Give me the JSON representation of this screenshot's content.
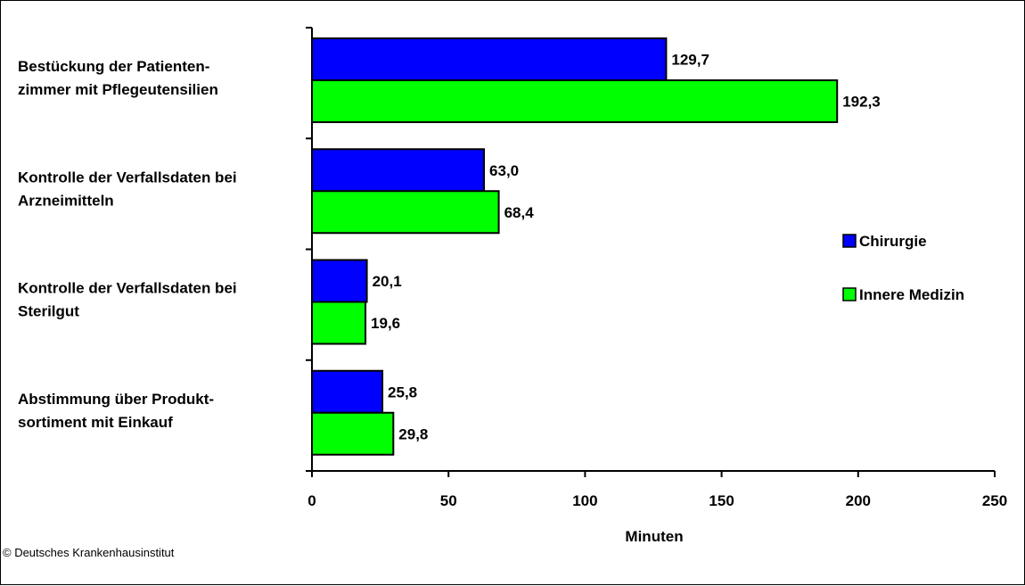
{
  "chart_data": {
    "type": "bar",
    "orientation": "horizontal",
    "categories": [
      [
        "Bestückung der Patienten-",
        "zimmer mit Pflegeutensilien"
      ],
      [
        "Kontrolle der Verfallsdaten bei",
        "Arzneimitteln"
      ],
      [
        "Kontrolle der Verfallsdaten bei",
        "Sterilgut"
      ],
      [
        "Abstimmung über Produkt-",
        "sortiment mit Einkauf"
      ]
    ],
    "series": [
      {
        "name": "Chirurgie",
        "color": "#0000ff",
        "values": [
          129.7,
          63.0,
          20.1,
          25.8
        ],
        "labels": [
          "129,7",
          "63,0",
          "20,1",
          "25,8"
        ]
      },
      {
        "name": "Innere Medizin",
        "color": "#00ff00",
        "values": [
          192.3,
          68.4,
          19.6,
          29.8
        ],
        "labels": [
          "192,3",
          "68,4",
          "19,6",
          "29,8"
        ]
      }
    ],
    "xlabel": "Minuten",
    "xlim": [
      0,
      250
    ],
    "xticks": [
      0,
      50,
      100,
      150,
      200,
      250
    ],
    "grid": false,
    "legend_position": "right"
  },
  "credit": "© Deutsches Krankenhausinstitut"
}
